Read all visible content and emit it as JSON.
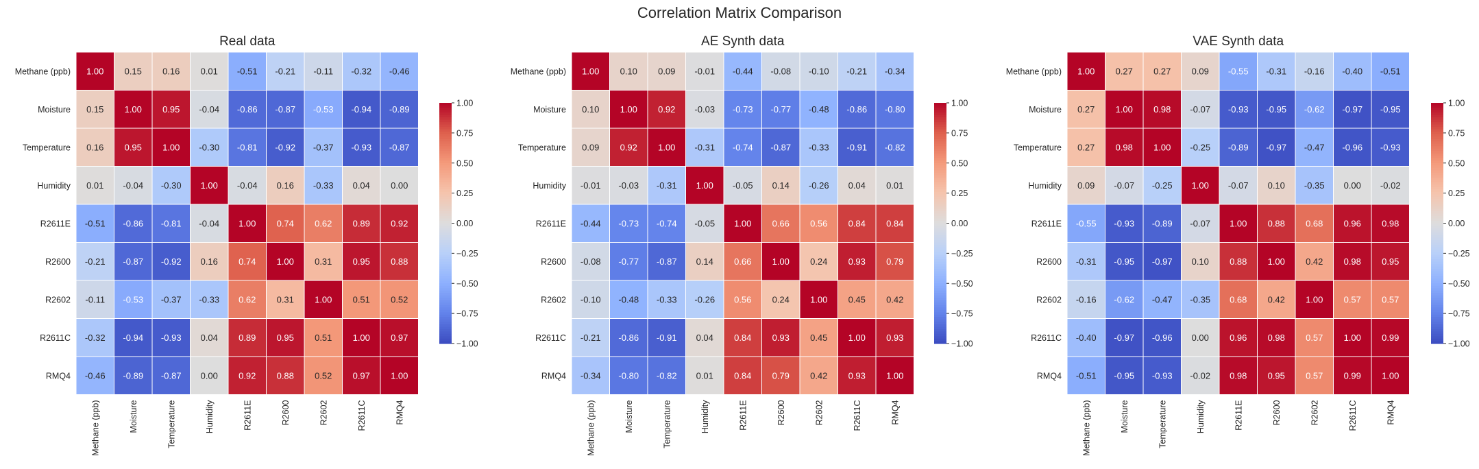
{
  "title": "Correlation Matrix Comparison",
  "chart_data": [
    {
      "type": "heatmap",
      "title": "Real data",
      "colormap": "coolwarm",
      "vmin": -1,
      "vmax": 1,
      "colorbar_ticks": [
        "1.00",
        "0.75",
        "0.50",
        "0.25",
        "0.00",
        "−0.25",
        "−0.50",
        "−0.75",
        "−1.00"
      ],
      "labels": [
        "Methane (ppb)",
        "Moisture",
        "Temperature",
        "Humidity",
        "R2611E",
        "R2600",
        "R2602",
        "R2611C",
        "RMQ4"
      ],
      "values": [
        [
          1.0,
          0.15,
          0.16,
          0.01,
          -0.51,
          -0.21,
          -0.11,
          -0.32,
          -0.46
        ],
        [
          0.15,
          1.0,
          0.95,
          -0.04,
          -0.86,
          -0.87,
          -0.53,
          -0.94,
          -0.89
        ],
        [
          0.16,
          0.95,
          1.0,
          -0.3,
          -0.81,
          -0.92,
          -0.37,
          -0.93,
          -0.87
        ],
        [
          0.01,
          -0.04,
          -0.3,
          1.0,
          -0.04,
          0.16,
          -0.33,
          0.04,
          0.0
        ],
        [
          -0.51,
          -0.86,
          -0.81,
          -0.04,
          1.0,
          0.74,
          0.62,
          0.89,
          0.92
        ],
        [
          -0.21,
          -0.87,
          -0.92,
          0.16,
          0.74,
          1.0,
          0.31,
          0.95,
          0.88
        ],
        [
          -0.11,
          -0.53,
          -0.37,
          -0.33,
          0.62,
          0.31,
          1.0,
          0.51,
          0.52
        ],
        [
          -0.32,
          -0.94,
          -0.93,
          0.04,
          0.89,
          0.95,
          0.51,
          1.0,
          0.97
        ],
        [
          -0.46,
          -0.89,
          -0.87,
          0.0,
          0.92,
          0.88,
          0.52,
          0.97,
          1.0
        ]
      ]
    },
    {
      "type": "heatmap",
      "title": "AE Synth data",
      "colormap": "coolwarm",
      "vmin": -1,
      "vmax": 1,
      "colorbar_ticks": [
        "1.00",
        "0.75",
        "0.50",
        "0.25",
        "0.00",
        "−0.25",
        "−0.50",
        "−0.75",
        "−1.00"
      ],
      "labels": [
        "Methane (ppb)",
        "Moisture",
        "Temperature",
        "Humidity",
        "R2611E",
        "R2600",
        "R2602",
        "R2611C",
        "RMQ4"
      ],
      "values": [
        [
          1.0,
          0.1,
          0.09,
          -0.01,
          -0.44,
          -0.08,
          -0.1,
          -0.21,
          -0.34
        ],
        [
          0.1,
          1.0,
          0.92,
          -0.03,
          -0.73,
          -0.77,
          -0.48,
          -0.86,
          -0.8
        ],
        [
          0.09,
          0.92,
          1.0,
          -0.31,
          -0.74,
          -0.87,
          -0.33,
          -0.91,
          -0.82
        ],
        [
          -0.01,
          -0.03,
          -0.31,
          1.0,
          -0.05,
          0.14,
          -0.26,
          0.04,
          0.01
        ],
        [
          -0.44,
          -0.73,
          -0.74,
          -0.05,
          1.0,
          0.66,
          0.56,
          0.84,
          0.84
        ],
        [
          -0.08,
          -0.77,
          -0.87,
          0.14,
          0.66,
          1.0,
          0.24,
          0.93,
          0.79
        ],
        [
          -0.1,
          -0.48,
          -0.33,
          -0.26,
          0.56,
          0.24,
          1.0,
          0.45,
          0.42
        ],
        [
          -0.21,
          -0.86,
          -0.91,
          0.04,
          0.84,
          0.93,
          0.45,
          1.0,
          0.93
        ],
        [
          -0.34,
          -0.8,
          -0.82,
          0.01,
          0.84,
          0.79,
          0.42,
          0.93,
          1.0
        ]
      ]
    },
    {
      "type": "heatmap",
      "title": "VAE Synth data",
      "colormap": "coolwarm",
      "vmin": -1,
      "vmax": 1,
      "colorbar_ticks": [
        "1.00",
        "0.75",
        "0.50",
        "0.25",
        "0.00",
        "−0.25",
        "−0.50",
        "−0.75",
        "−1.00"
      ],
      "labels": [
        "Methane (ppb)",
        "Moisture",
        "Temperature",
        "Humidity",
        "R2611E",
        "R2600",
        "R2602",
        "R2611C",
        "RMQ4"
      ],
      "values": [
        [
          1.0,
          0.27,
          0.27,
          0.09,
          -0.55,
          -0.31,
          -0.16,
          -0.4,
          -0.51
        ],
        [
          0.27,
          1.0,
          0.98,
          -0.07,
          -0.93,
          -0.95,
          -0.62,
          -0.97,
          -0.95
        ],
        [
          0.27,
          0.98,
          1.0,
          -0.25,
          -0.89,
          -0.97,
          -0.47,
          -0.96,
          -0.93
        ],
        [
          0.09,
          -0.07,
          -0.25,
          1.0,
          -0.07,
          0.1,
          -0.35,
          0.0,
          -0.02
        ],
        [
          -0.55,
          -0.93,
          -0.89,
          -0.07,
          1.0,
          0.88,
          0.68,
          0.96,
          0.98
        ],
        [
          -0.31,
          -0.95,
          -0.97,
          0.1,
          0.88,
          1.0,
          0.42,
          0.98,
          0.95
        ],
        [
          -0.16,
          -0.62,
          -0.47,
          -0.35,
          0.68,
          0.42,
          1.0,
          0.57,
          0.57
        ],
        [
          -0.4,
          -0.97,
          -0.96,
          0.0,
          0.96,
          0.98,
          0.57,
          1.0,
          0.99
        ],
        [
          -0.51,
          -0.95,
          -0.93,
          -0.02,
          0.98,
          0.95,
          0.57,
          0.99,
          1.0
        ]
      ]
    }
  ]
}
